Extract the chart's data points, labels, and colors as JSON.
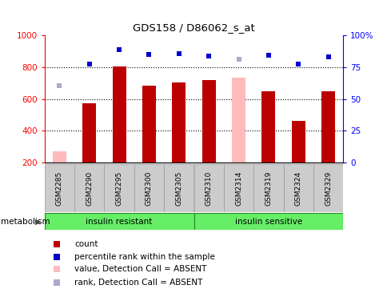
{
  "title": "GDS158 / D86062_s_at",
  "categories": [
    "GSM2285",
    "GSM2290",
    "GSM2295",
    "GSM2300",
    "GSM2305",
    "GSM2310",
    "GSM2314",
    "GSM2319",
    "GSM2324",
    "GSM2329"
  ],
  "bar_values": [
    270,
    575,
    805,
    685,
    705,
    720,
    735,
    650,
    460,
    650
  ],
  "absent_bar_indices": [
    0,
    6
  ],
  "rank_values": [
    null,
    820,
    910,
    880,
    885,
    870,
    null,
    875,
    820,
    865
  ],
  "rank_absent_values": [
    685,
    null,
    null,
    null,
    null,
    null,
    848,
    null,
    null,
    null
  ],
  "group1_count": 5,
  "group1_label": "insulin resistant",
  "group2_label": "insulin sensitive",
  "group_color": "#66ee66",
  "group_label": "metabolism",
  "ylim_left": [
    200,
    1000
  ],
  "ylim_right": [
    0,
    100
  ],
  "yticks_left": [
    200,
    400,
    600,
    800,
    1000
  ],
  "ytick_labels_right": [
    "0",
    "25",
    "50",
    "75",
    "100%"
  ],
  "ytick_vals_right": [
    0,
    25,
    50,
    75,
    100
  ],
  "grid_vals": [
    400,
    600,
    800
  ],
  "bar_width": 0.45,
  "bar_color": "#bb0000",
  "absent_bar_color": "#ffbbbb",
  "absent_rank_color": "#aaaacc",
  "rank_color": "#0000cc",
  "tick_bg_color": "#cccccc",
  "legend_items": [
    {
      "color": "#bb0000",
      "label": "count"
    },
    {
      "color": "#0000cc",
      "label": "percentile rank within the sample"
    },
    {
      "color": "#ffbbbb",
      "label": "value, Detection Call = ABSENT"
    },
    {
      "color": "#aaaacc",
      "label": "rank, Detection Call = ABSENT"
    }
  ]
}
